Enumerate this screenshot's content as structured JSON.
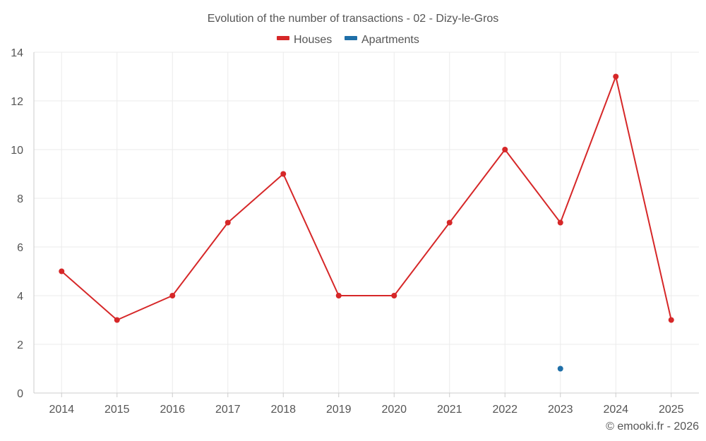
{
  "chart_data": {
    "type": "line",
    "title": "Evolution of the number of transactions - 02 - Dizy-le-Gros",
    "categories": [
      "2014",
      "2015",
      "2016",
      "2017",
      "2018",
      "2019",
      "2020",
      "2021",
      "2022",
      "2023",
      "2024",
      "2025"
    ],
    "series": [
      {
        "name": "Houses",
        "color": "#d62728",
        "values": [
          5,
          3,
          4,
          7,
          9,
          4,
          4,
          7,
          10,
          7,
          13,
          3
        ]
      },
      {
        "name": "Apartments",
        "color": "#1f6fa8",
        "values": [
          null,
          null,
          null,
          null,
          null,
          null,
          null,
          null,
          null,
          1,
          null,
          null
        ]
      }
    ],
    "ylim": [
      0,
      14
    ],
    "yticks": [
      0,
      2,
      4,
      6,
      8,
      10,
      12,
      14
    ],
    "xlabel": "",
    "ylabel": "",
    "grid": true,
    "legend_position": "top-center"
  },
  "credit": "© emooki.fr - 2026"
}
